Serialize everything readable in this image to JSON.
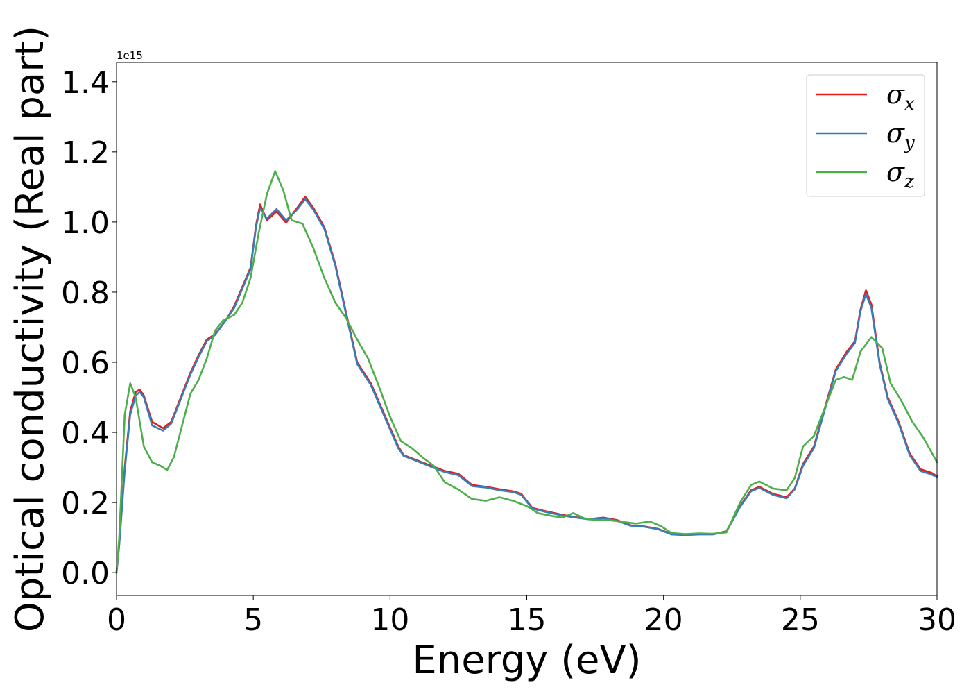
{
  "chart_data": {
    "type": "line",
    "xlabel": "Energy (eV)",
    "ylabel": "Optical conductivity (Real part)",
    "y_scale_label": "1e15",
    "xlim": [
      0,
      30
    ],
    "ylim": [
      -0.065,
      1.455
    ],
    "x_ticks": [
      "0",
      "5",
      "10",
      "15",
      "20",
      "25",
      "30"
    ],
    "y_ticks": [
      "0.0",
      "0.2",
      "0.4",
      "0.6",
      "0.8",
      "1.0",
      "1.2",
      "1.4"
    ],
    "grid": false,
    "legend_position": "top-right",
    "series": [
      {
        "name": "σx",
        "legend_symbol": "σ",
        "legend_sub": "x",
        "color": "#e41a1c",
        "points": [
          [
            0,
            0.0
          ],
          [
            0.1,
            0.08
          ],
          [
            0.3,
            0.3
          ],
          [
            0.5,
            0.46
          ],
          [
            0.7,
            0.515
          ],
          [
            0.85,
            0.522
          ],
          [
            1.0,
            0.505
          ],
          [
            1.3,
            0.43
          ],
          [
            1.7,
            0.412
          ],
          [
            2.0,
            0.43
          ],
          [
            2.3,
            0.49
          ],
          [
            2.7,
            0.57
          ],
          [
            3.0,
            0.62
          ],
          [
            3.3,
            0.665
          ],
          [
            3.6,
            0.68
          ],
          [
            4.0,
            0.72
          ],
          [
            4.3,
            0.76
          ],
          [
            4.6,
            0.815
          ],
          [
            4.9,
            0.87
          ],
          [
            5.1,
            0.99
          ],
          [
            5.25,
            1.05
          ],
          [
            5.5,
            1.005
          ],
          [
            5.85,
            1.03
          ],
          [
            6.2,
            0.998
          ],
          [
            6.6,
            1.04
          ],
          [
            6.9,
            1.072
          ],
          [
            7.2,
            1.04
          ],
          [
            7.6,
            0.985
          ],
          [
            8.0,
            0.88
          ],
          [
            8.4,
            0.74
          ],
          [
            8.8,
            0.6
          ],
          [
            9.3,
            0.54
          ],
          [
            9.8,
            0.45
          ],
          [
            10.3,
            0.36
          ],
          [
            10.5,
            0.335
          ],
          [
            11.0,
            0.32
          ],
          [
            11.5,
            0.305
          ],
          [
            12.0,
            0.29
          ],
          [
            12.5,
            0.282
          ],
          [
            13.0,
            0.25
          ],
          [
            13.5,
            0.245
          ],
          [
            14.0,
            0.238
          ],
          [
            14.5,
            0.232
          ],
          [
            14.8,
            0.225
          ],
          [
            15.2,
            0.185
          ],
          [
            15.7,
            0.175
          ],
          [
            16.3,
            0.165
          ],
          [
            16.8,
            0.158
          ],
          [
            17.3,
            0.153
          ],
          [
            17.8,
            0.157
          ],
          [
            18.3,
            0.15
          ],
          [
            18.8,
            0.135
          ],
          [
            19.3,
            0.132
          ],
          [
            19.8,
            0.125
          ],
          [
            20.3,
            0.11
          ],
          [
            20.8,
            0.108
          ],
          [
            21.3,
            0.11
          ],
          [
            21.8,
            0.11
          ],
          [
            22.3,
            0.118
          ],
          [
            22.8,
            0.19
          ],
          [
            23.2,
            0.235
          ],
          [
            23.5,
            0.245
          ],
          [
            24.0,
            0.225
          ],
          [
            24.5,
            0.215
          ],
          [
            24.8,
            0.24
          ],
          [
            25.1,
            0.31
          ],
          [
            25.5,
            0.36
          ],
          [
            25.9,
            0.47
          ],
          [
            26.3,
            0.58
          ],
          [
            26.7,
            0.63
          ],
          [
            27.0,
            0.66
          ],
          [
            27.2,
            0.75
          ],
          [
            27.4,
            0.805
          ],
          [
            27.6,
            0.765
          ],
          [
            27.9,
            0.6
          ],
          [
            28.2,
            0.5
          ],
          [
            28.6,
            0.43
          ],
          [
            29.0,
            0.34
          ],
          [
            29.4,
            0.295
          ],
          [
            29.8,
            0.285
          ],
          [
            30.0,
            0.275
          ]
        ]
      },
      {
        "name": "σy",
        "legend_symbol": "σ",
        "legend_sub": "y",
        "color": "#377eb8",
        "points": [
          [
            0,
            0.0
          ],
          [
            0.1,
            0.08
          ],
          [
            0.3,
            0.29
          ],
          [
            0.5,
            0.45
          ],
          [
            0.7,
            0.505
          ],
          [
            0.85,
            0.515
          ],
          [
            1.0,
            0.5
          ],
          [
            1.3,
            0.42
          ],
          [
            1.7,
            0.405
          ],
          [
            2.0,
            0.425
          ],
          [
            2.3,
            0.485
          ],
          [
            2.7,
            0.565
          ],
          [
            3.0,
            0.615
          ],
          [
            3.3,
            0.66
          ],
          [
            3.6,
            0.678
          ],
          [
            4.0,
            0.72
          ],
          [
            4.3,
            0.755
          ],
          [
            4.6,
            0.81
          ],
          [
            4.9,
            0.865
          ],
          [
            5.1,
            0.985
          ],
          [
            5.25,
            1.04
          ],
          [
            5.5,
            1.01
          ],
          [
            5.85,
            1.037
          ],
          [
            6.2,
            1.005
          ],
          [
            6.6,
            1.035
          ],
          [
            6.9,
            1.065
          ],
          [
            7.2,
            1.035
          ],
          [
            7.6,
            0.98
          ],
          [
            8.0,
            0.875
          ],
          [
            8.4,
            0.735
          ],
          [
            8.8,
            0.595
          ],
          [
            9.3,
            0.535
          ],
          [
            9.8,
            0.445
          ],
          [
            10.3,
            0.355
          ],
          [
            10.5,
            0.333
          ],
          [
            11.0,
            0.318
          ],
          [
            11.5,
            0.302
          ],
          [
            12.0,
            0.287
          ],
          [
            12.5,
            0.278
          ],
          [
            13.0,
            0.247
          ],
          [
            13.5,
            0.243
          ],
          [
            14.0,
            0.235
          ],
          [
            14.5,
            0.23
          ],
          [
            14.8,
            0.222
          ],
          [
            15.2,
            0.183
          ],
          [
            15.7,
            0.173
          ],
          [
            16.3,
            0.163
          ],
          [
            16.8,
            0.157
          ],
          [
            17.3,
            0.152
          ],
          [
            17.8,
            0.155
          ],
          [
            18.3,
            0.148
          ],
          [
            18.8,
            0.134
          ],
          [
            19.3,
            0.131
          ],
          [
            19.8,
            0.124
          ],
          [
            20.3,
            0.109
          ],
          [
            20.8,
            0.107
          ],
          [
            21.3,
            0.109
          ],
          [
            21.8,
            0.109
          ],
          [
            22.3,
            0.117
          ],
          [
            22.8,
            0.188
          ],
          [
            23.2,
            0.232
          ],
          [
            23.5,
            0.242
          ],
          [
            24.0,
            0.222
          ],
          [
            24.5,
            0.212
          ],
          [
            24.8,
            0.238
          ],
          [
            25.1,
            0.305
          ],
          [
            25.5,
            0.355
          ],
          [
            25.9,
            0.465
          ],
          [
            26.3,
            0.575
          ],
          [
            26.7,
            0.625
          ],
          [
            27.0,
            0.655
          ],
          [
            27.2,
            0.745
          ],
          [
            27.4,
            0.795
          ],
          [
            27.6,
            0.755
          ],
          [
            27.9,
            0.595
          ],
          [
            28.2,
            0.495
          ],
          [
            28.6,
            0.425
          ],
          [
            29.0,
            0.335
          ],
          [
            29.4,
            0.29
          ],
          [
            29.8,
            0.28
          ],
          [
            30.0,
            0.272
          ]
        ]
      },
      {
        "name": "σz",
        "legend_symbol": "σ",
        "legend_sub": "z",
        "color": "#4daf4a",
        "points": [
          [
            0,
            0.0
          ],
          [
            0.1,
            0.1
          ],
          [
            0.3,
            0.45
          ],
          [
            0.5,
            0.54
          ],
          [
            0.7,
            0.5
          ],
          [
            1.0,
            0.36
          ],
          [
            1.3,
            0.315
          ],
          [
            1.6,
            0.305
          ],
          [
            1.85,
            0.293
          ],
          [
            2.1,
            0.33
          ],
          [
            2.4,
            0.42
          ],
          [
            2.7,
            0.51
          ],
          [
            3.0,
            0.55
          ],
          [
            3.3,
            0.61
          ],
          [
            3.6,
            0.69
          ],
          [
            3.9,
            0.72
          ],
          [
            4.3,
            0.735
          ],
          [
            4.6,
            0.77
          ],
          [
            4.9,
            0.84
          ],
          [
            5.2,
            0.97
          ],
          [
            5.5,
            1.08
          ],
          [
            5.8,
            1.145
          ],
          [
            6.1,
            1.09
          ],
          [
            6.4,
            1.005
          ],
          [
            6.8,
            0.995
          ],
          [
            7.2,
            0.925
          ],
          [
            7.6,
            0.84
          ],
          [
            8.0,
            0.77
          ],
          [
            8.4,
            0.725
          ],
          [
            8.8,
            0.665
          ],
          [
            9.2,
            0.61
          ],
          [
            9.6,
            0.53
          ],
          [
            10.0,
            0.445
          ],
          [
            10.4,
            0.375
          ],
          [
            10.8,
            0.355
          ],
          [
            11.2,
            0.328
          ],
          [
            11.6,
            0.305
          ],
          [
            12.0,
            0.258
          ],
          [
            12.5,
            0.237
          ],
          [
            13.0,
            0.21
          ],
          [
            13.5,
            0.205
          ],
          [
            14.0,
            0.215
          ],
          [
            14.5,
            0.205
          ],
          [
            15.0,
            0.19
          ],
          [
            15.4,
            0.17
          ],
          [
            15.9,
            0.162
          ],
          [
            16.3,
            0.157
          ],
          [
            16.7,
            0.17
          ],
          [
            17.1,
            0.155
          ],
          [
            17.5,
            0.15
          ],
          [
            18.0,
            0.15
          ],
          [
            18.5,
            0.145
          ],
          [
            19.0,
            0.14
          ],
          [
            19.5,
            0.146
          ],
          [
            19.9,
            0.133
          ],
          [
            20.3,
            0.113
          ],
          [
            20.8,
            0.11
          ],
          [
            21.3,
            0.112
          ],
          [
            21.8,
            0.111
          ],
          [
            22.3,
            0.115
          ],
          [
            22.8,
            0.2
          ],
          [
            23.2,
            0.25
          ],
          [
            23.5,
            0.26
          ],
          [
            24.0,
            0.24
          ],
          [
            24.5,
            0.235
          ],
          [
            24.8,
            0.27
          ],
          [
            25.1,
            0.36
          ],
          [
            25.5,
            0.39
          ],
          [
            25.9,
            0.47
          ],
          [
            26.3,
            0.55
          ],
          [
            26.6,
            0.558
          ],
          [
            26.9,
            0.55
          ],
          [
            27.2,
            0.63
          ],
          [
            27.6,
            0.672
          ],
          [
            28.0,
            0.64
          ],
          [
            28.3,
            0.54
          ],
          [
            28.7,
            0.49
          ],
          [
            29.1,
            0.43
          ],
          [
            29.5,
            0.385
          ],
          [
            30.0,
            0.315
          ]
        ]
      }
    ]
  }
}
